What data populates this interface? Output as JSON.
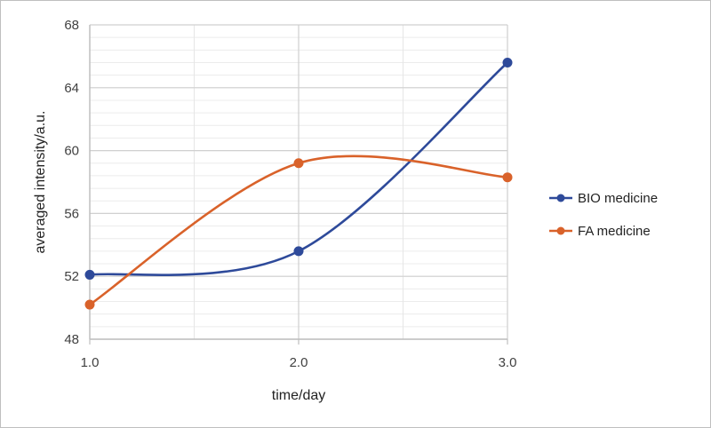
{
  "chart_data": {
    "type": "line",
    "title": "",
    "xlabel": "time/day",
    "ylabel": "averaged intensity/a.u.",
    "x": [
      1.0,
      2.0,
      3.0
    ],
    "x_tick_labels": [
      "1.0",
      "2.0",
      "3.0"
    ],
    "xlim": [
      1.0,
      3.0
    ],
    "ylim": [
      48,
      68
    ],
    "y_ticks": [
      48,
      52,
      56,
      60,
      64,
      68
    ],
    "grid": true,
    "smoothed": true,
    "legend_position": "right",
    "series": [
      {
        "name": "BIO medicine",
        "values": [
          52.1,
          53.6,
          65.6
        ],
        "color": "#2e4a9a"
      },
      {
        "name": "FA medicine",
        "values": [
          50.2,
          59.2,
          58.3
        ],
        "color": "#d9622a"
      }
    ]
  }
}
